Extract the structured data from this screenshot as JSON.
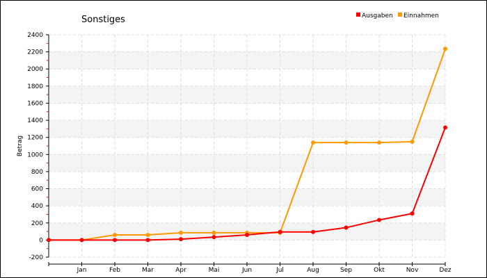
{
  "chart_data": {
    "type": "line",
    "title": "Sonstiges",
    "ylabel": "Betrag",
    "xlabel": "",
    "x": [
      "",
      "Jan",
      "Feb",
      "Mar",
      "Apr",
      "Mai",
      "Jun",
      "Jul",
      "Aug",
      "Sep",
      "Okt",
      "Nov",
      "Dez"
    ],
    "ylim": [
      -200,
      2400
    ],
    "yticks": [
      -200,
      0,
      200,
      400,
      600,
      800,
      1000,
      1200,
      1400,
      1600,
      1800,
      2000,
      2200,
      2400
    ],
    "grid": true,
    "legend_position": "top-right",
    "series": [
      {
        "name": "Ausgaben",
        "color": "#ff0000",
        "values": [
          0,
          0,
          0,
          0,
          10,
          35,
          60,
          95,
          95,
          145,
          235,
          310,
          1315
        ]
      },
      {
        "name": "Einnahmen",
        "color": "#ff9900",
        "values": [
          0,
          0,
          60,
          60,
          85,
          85,
          85,
          85,
          1140,
          1140,
          1140,
          1150,
          2235
        ]
      }
    ]
  }
}
